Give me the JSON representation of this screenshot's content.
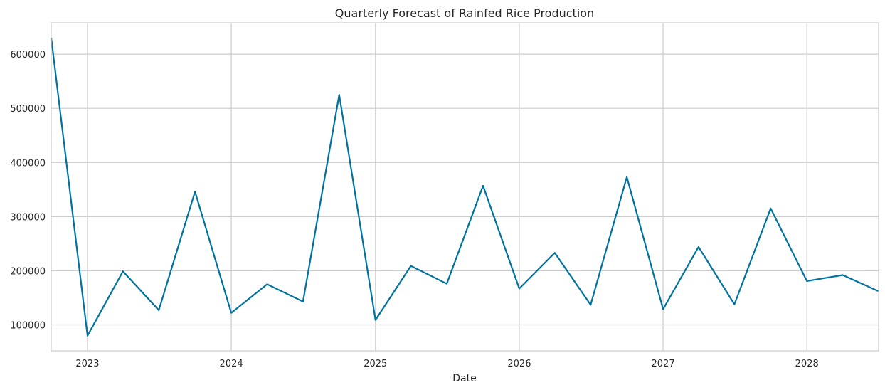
{
  "chart_data": {
    "type": "line",
    "title": "Quarterly Forecast of Rainfed Rice Production",
    "xlabel": "Date",
    "ylabel": "",
    "grid": true,
    "xlim": [
      "2022-10-01",
      "2028-07-01"
    ],
    "ylim": [
      52000,
      658000
    ],
    "x_ticks": [
      "2023-01-01",
      "2024-01-01",
      "2025-01-01",
      "2026-01-01",
      "2027-01-01",
      "2028-01-01"
    ],
    "x_tick_labels": [
      "2023",
      "2024",
      "2025",
      "2026",
      "2027",
      "2028"
    ],
    "y_ticks": [
      100000,
      200000,
      300000,
      400000,
      500000,
      600000
    ],
    "y_tick_labels": [
      "100000",
      "200000",
      "300000",
      "400000",
      "500000",
      "600000"
    ],
    "series": [
      {
        "color": "#0072a0",
        "x": [
          "2022-10-01",
          "2023-01-01",
          "2023-04-01",
          "2023-07-01",
          "2023-10-01",
          "2024-01-01",
          "2024-04-01",
          "2024-07-01",
          "2024-10-01",
          "2025-01-01",
          "2025-04-01",
          "2025-07-01",
          "2025-10-01",
          "2026-01-01",
          "2026-04-01",
          "2026-07-01",
          "2026-10-01",
          "2027-01-01",
          "2027-04-01",
          "2027-07-01",
          "2027-10-01",
          "2028-01-01",
          "2028-04-01",
          "2028-07-01"
        ],
        "values": [
          630000,
          80000,
          199000,
          127000,
          346000,
          122000,
          175000,
          143000,
          525000,
          109000,
          209000,
          176000,
          357000,
          167000,
          233000,
          137000,
          373000,
          129000,
          244000,
          138000,
          315000,
          181000,
          192000,
          162000
        ]
      }
    ]
  }
}
